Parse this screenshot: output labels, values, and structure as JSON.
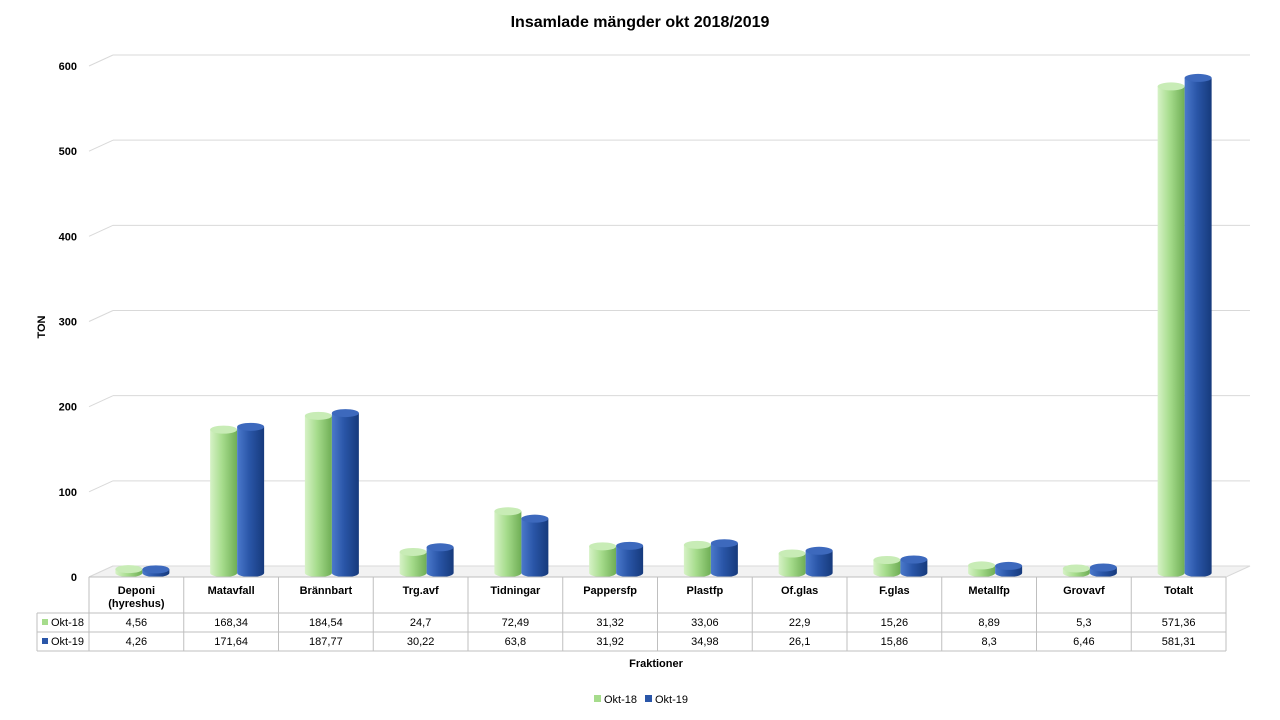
{
  "chart_data": {
    "type": "bar",
    "title": "Insamlade mängder okt 2018/2019",
    "xlabel": "Fraktioner",
    "ylabel": "TON",
    "ylim": [
      0,
      600
    ],
    "yticks": [
      0,
      100,
      200,
      300,
      400,
      500,
      600
    ],
    "grid": true,
    "legend_position": "bottom",
    "has_data_table": true,
    "categories": [
      "Deponi (hyreshus)",
      "Matavfall",
      "Brännbart",
      "Trg.avf",
      "Tidningar",
      "Pappersfp",
      "Plastfp",
      "Of.glas",
      "F.glas",
      "Metallfp",
      "Grovavf",
      "Totalt"
    ],
    "category_lines": [
      [
        "Deponi",
        "(hyreshus)"
      ],
      [
        "Matavfall"
      ],
      [
        "Brännbart"
      ],
      [
        "Trg.avf"
      ],
      [
        "Tidningar"
      ],
      [
        "Pappersfp"
      ],
      [
        "Plastfp"
      ],
      [
        "Of.glas"
      ],
      [
        "F.glas"
      ],
      [
        "Metallfp"
      ],
      [
        "Grovavf"
      ],
      [
        "Totalt"
      ]
    ],
    "series": [
      {
        "name": "Okt-18",
        "color": "#a6dc8c",
        "values": [
          4.56,
          168.34,
          184.54,
          24.7,
          72.49,
          31.32,
          33.06,
          22.9,
          15.26,
          8.89,
          5.3,
          571.36
        ],
        "labels": [
          "4,56",
          "168,34",
          "184,54",
          "24,7",
          "72,49",
          "31,32",
          "33,06",
          "22,9",
          "15,26",
          "8,89",
          "5,3",
          "571,36"
        ]
      },
      {
        "name": "Okt-19",
        "color": "#2a56a8",
        "values": [
          4.26,
          171.64,
          187.77,
          30.22,
          63.8,
          31.92,
          34.98,
          26.1,
          15.86,
          8.3,
          6.46,
          581.31
        ],
        "labels": [
          "4,26",
          "171,64",
          "187,77",
          "30,22",
          "63,8",
          "31,92",
          "34,98",
          "26,1",
          "15,86",
          "8,3",
          "6,46",
          "581,31"
        ]
      }
    ]
  }
}
